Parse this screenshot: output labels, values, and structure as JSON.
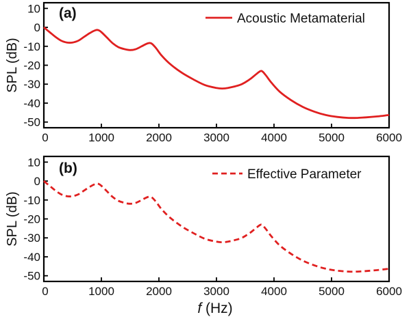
{
  "colors": {
    "series": "#e02020",
    "axis": "#000000"
  },
  "xlabel_italic": "f",
  "xlabel_unit": " (Hz)",
  "chart_data": [
    {
      "type": "line",
      "panel_label": "(a)",
      "ylabel": "SPL (dB)",
      "xlabel": "",
      "xlim": [
        0,
        6000
      ],
      "ylim": [
        -53,
        13
      ],
      "xticks": [
        0,
        1000,
        2000,
        3000,
        4000,
        5000,
        6000
      ],
      "yticks": [
        10,
        0,
        -10,
        -20,
        -30,
        -40,
        -50
      ],
      "legend": "top-right",
      "grid": false,
      "series": [
        {
          "name": "Acoustic Metamaterial",
          "style": "solid",
          "x": [
            0,
            100,
            200,
            300,
            400,
            500,
            600,
            700,
            800,
            900,
            950,
            1000,
            1100,
            1200,
            1300,
            1400,
            1500,
            1600,
            1700,
            1800,
            1870,
            1950,
            2050,
            2200,
            2400,
            2600,
            2800,
            3000,
            3100,
            3200,
            3400,
            3500,
            3600,
            3700,
            3780,
            3850,
            3950,
            4100,
            4300,
            4500,
            4700,
            4900,
            5100,
            5300,
            5450,
            5600,
            5800,
            6000
          ],
          "y": [
            0,
            -2.5,
            -5,
            -7,
            -8,
            -8,
            -7,
            -5,
            -3,
            -1.5,
            -1.5,
            -2.5,
            -5.5,
            -8.5,
            -10.5,
            -11.5,
            -12,
            -11.5,
            -10,
            -8.5,
            -8.5,
            -11,
            -15,
            -19.5,
            -24,
            -27.5,
            -30.5,
            -32,
            -32.3,
            -32,
            -30.5,
            -29,
            -27,
            -24.5,
            -23,
            -25,
            -29,
            -34,
            -38.5,
            -42,
            -44.5,
            -46.3,
            -47.3,
            -47.8,
            -47.8,
            -47.5,
            -47,
            -46.3
          ]
        }
      ]
    },
    {
      "type": "line",
      "panel_label": "(b)",
      "ylabel": "SPL (dB)",
      "xlabel": "f (Hz)",
      "xlim": [
        0,
        6000
      ],
      "ylim": [
        -53,
        13
      ],
      "xticks": [
        0,
        1000,
        2000,
        3000,
        4000,
        5000,
        6000
      ],
      "yticks": [
        10,
        0,
        -10,
        -20,
        -30,
        -40,
        -50
      ],
      "legend": "top-right",
      "grid": false,
      "series": [
        {
          "name": "Effective Parameter",
          "style": "dashed",
          "x": [
            0,
            100,
            200,
            300,
            400,
            500,
            600,
            700,
            800,
            900,
            950,
            1000,
            1100,
            1200,
            1300,
            1400,
            1500,
            1600,
            1700,
            1800,
            1870,
            1950,
            2050,
            2200,
            2400,
            2600,
            2800,
            3000,
            3100,
            3200,
            3400,
            3500,
            3600,
            3700,
            3780,
            3850,
            3950,
            4100,
            4300,
            4500,
            4700,
            4900,
            5100,
            5300,
            5450,
            5600,
            5800,
            6000
          ],
          "y": [
            0,
            -2.5,
            -5,
            -7,
            -8,
            -8,
            -7,
            -5,
            -3,
            -1.5,
            -1.5,
            -2.5,
            -5.5,
            -8.5,
            -10.5,
            -11.5,
            -12,
            -11.5,
            -10,
            -8.5,
            -8.5,
            -11,
            -15,
            -19.5,
            -24,
            -27.5,
            -30.5,
            -32,
            -32.3,
            -32,
            -30.5,
            -29,
            -27,
            -24.5,
            -23,
            -25,
            -29,
            -34,
            -38.5,
            -42,
            -44.5,
            -46.3,
            -47.3,
            -47.8,
            -47.8,
            -47.5,
            -47,
            -46.3
          ]
        }
      ]
    }
  ]
}
